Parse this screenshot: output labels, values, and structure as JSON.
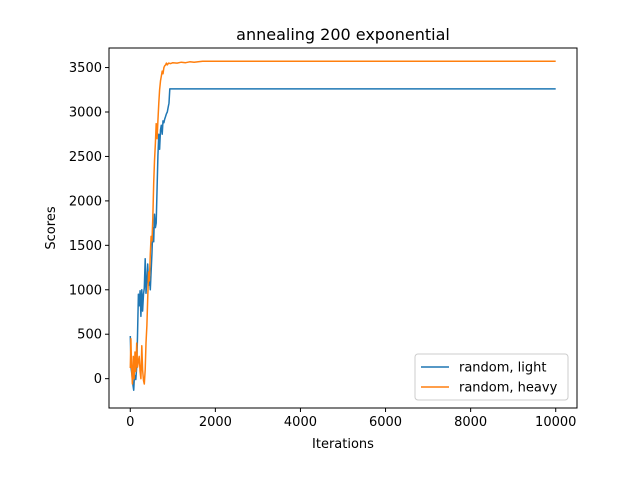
{
  "chart_data": {
    "type": "line",
    "title": "annealing 200 exponential",
    "xlabel": "Iterations",
    "ylabel": "Scores",
    "xlim": [
      -500,
      10500
    ],
    "ylim": [
      -330,
      3720
    ],
    "xticks": [
      0,
      2000,
      4000,
      6000,
      8000,
      10000
    ],
    "yticks": [
      0,
      500,
      1000,
      1500,
      2000,
      2500,
      3000,
      3500
    ],
    "grid": false,
    "legend_position": "lower right",
    "series": [
      {
        "name": "random, light",
        "color": "#1f77b4",
        "points": [
          [
            0,
            480
          ],
          [
            20,
            120
          ],
          [
            40,
            40
          ],
          [
            60,
            -60
          ],
          [
            80,
            -130
          ],
          [
            100,
            40
          ],
          [
            130,
            -10
          ],
          [
            150,
            130
          ],
          [
            170,
            480
          ],
          [
            190,
            950
          ],
          [
            210,
            820
          ],
          [
            230,
            990
          ],
          [
            250,
            700
          ],
          [
            270,
            1000
          ],
          [
            290,
            760
          ],
          [
            310,
            950
          ],
          [
            330,
            1020
          ],
          [
            350,
            1350
          ],
          [
            370,
            960
          ],
          [
            390,
            1110
          ],
          [
            410,
            1290
          ],
          [
            430,
            1050
          ],
          [
            450,
            1150
          ],
          [
            470,
            1000
          ],
          [
            490,
            1200
          ],
          [
            510,
            1420
          ],
          [
            530,
            1700
          ],
          [
            550,
            1540
          ],
          [
            570,
            1850
          ],
          [
            590,
            1700
          ],
          [
            610,
            1750
          ],
          [
            630,
            2150
          ],
          [
            650,
            2500
          ],
          [
            670,
            2750
          ],
          [
            690,
            2580
          ],
          [
            710,
            2800
          ],
          [
            730,
            2850
          ],
          [
            750,
            2750
          ],
          [
            770,
            2900
          ],
          [
            790,
            2880
          ],
          [
            810,
            2920
          ],
          [
            830,
            2950
          ],
          [
            850,
            2980
          ],
          [
            870,
            3000
          ],
          [
            890,
            3050
          ],
          [
            910,
            3100
          ],
          [
            930,
            3260
          ],
          [
            1000,
            3260
          ],
          [
            10000,
            3260
          ]
        ]
      },
      {
        "name": "random, heavy",
        "color": "#ff7f0e",
        "points": [
          [
            0,
            120
          ],
          [
            15,
            450
          ],
          [
            30,
            150
          ],
          [
            50,
            -60
          ],
          [
            70,
            250
          ],
          [
            90,
            0
          ],
          [
            110,
            300
          ],
          [
            130,
            80
          ],
          [
            150,
            400
          ],
          [
            170,
            130
          ],
          [
            190,
            200
          ],
          [
            210,
            250
          ],
          [
            230,
            80
          ],
          [
            250,
            0
          ],
          [
            270,
            370
          ],
          [
            290,
            100
          ],
          [
            310,
            -20
          ],
          [
            330,
            -60
          ],
          [
            350,
            100
          ],
          [
            370,
            400
          ],
          [
            390,
            600
          ],
          [
            410,
            900
          ],
          [
            430,
            1200
          ],
          [
            450,
            1100
          ],
          [
            470,
            1400
          ],
          [
            490,
            1600
          ],
          [
            510,
            1550
          ],
          [
            530,
            1800
          ],
          [
            550,
            2200
          ],
          [
            570,
            2450
          ],
          [
            590,
            2650
          ],
          [
            610,
            2870
          ],
          [
            630,
            2700
          ],
          [
            650,
            2900
          ],
          [
            670,
            3100
          ],
          [
            690,
            3250
          ],
          [
            710,
            3350
          ],
          [
            730,
            3400
          ],
          [
            750,
            3460
          ],
          [
            770,
            3430
          ],
          [
            790,
            3500
          ],
          [
            810,
            3520
          ],
          [
            830,
            3530
          ],
          [
            850,
            3550
          ],
          [
            870,
            3530
          ],
          [
            900,
            3550
          ],
          [
            950,
            3545
          ],
          [
            1000,
            3555
          ],
          [
            1100,
            3550
          ],
          [
            1200,
            3560
          ],
          [
            1300,
            3555
          ],
          [
            1400,
            3565
          ],
          [
            1500,
            3560
          ],
          [
            1600,
            3565
          ],
          [
            1700,
            3570
          ],
          [
            10000,
            3570
          ]
        ]
      }
    ]
  }
}
